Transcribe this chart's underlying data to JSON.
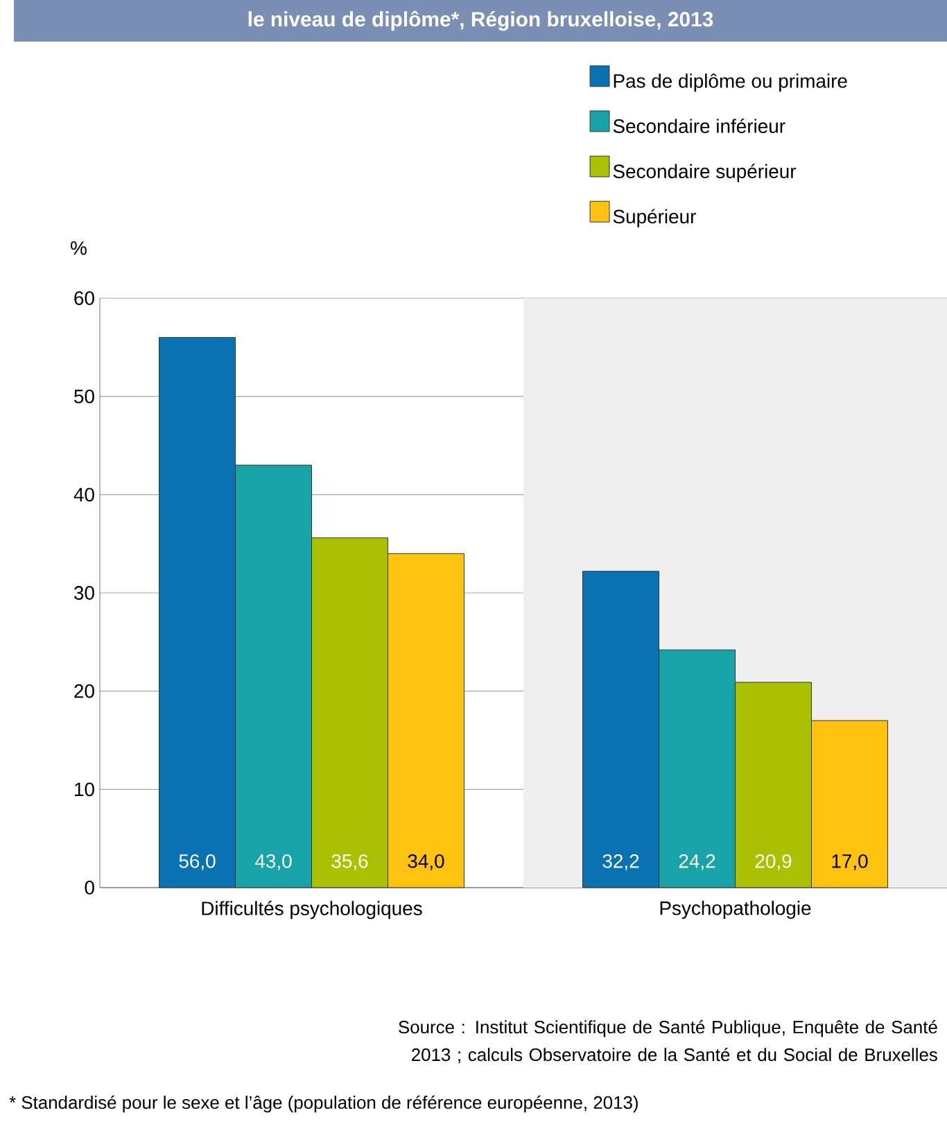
{
  "chart_data": {
    "type": "bar",
    "title": "le niveau de diplôme*, Région bruxelloise, 2013",
    "ylabel": "%",
    "categories": [
      "Difficultés psychologiques",
      "Psychopathologie"
    ],
    "series": [
      {
        "name": "Pas de diplôme ou primaire",
        "color": "#0a72b0",
        "values": [
          56.0,
          32.2
        ],
        "value_labels": [
          "56,0",
          "32,2"
        ]
      },
      {
        "name": "Secondaire inférieur",
        "color": "#17a3a8",
        "values": [
          43.0,
          24.2
        ],
        "value_labels": [
          "43,0",
          "24,2"
        ]
      },
      {
        "name": "Secondaire supérieur",
        "color": "#a9c100",
        "values": [
          35.6,
          20.9
        ],
        "value_labels": [
          "35,6",
          "20,9"
        ]
      },
      {
        "name": "Supérieur",
        "color": "#ffc20e",
        "values": [
          34.0,
          17.0
        ],
        "value_labels": [
          "34,0",
          "17,0"
        ]
      }
    ],
    "ylim": [
      0,
      60
    ],
    "yticks": [
      0,
      10,
      20,
      30,
      40,
      50,
      60
    ],
    "grid": "y",
    "legend": "top right",
    "bands": [
      {
        "axis": "x",
        "from": "Psychopathologie",
        "to": "Psychopathologie",
        "color": "#efefef"
      }
    ],
    "annotations": [
      "Source : Institut Scientifique de Santé Publique, Enquête de Santé 2013 ; calculs Observatoire de la Santé et du Social de Bruxelles",
      "* Standardisé pour le sexe et l’âge (population de référence européenne, 2013)"
    ]
  }
}
